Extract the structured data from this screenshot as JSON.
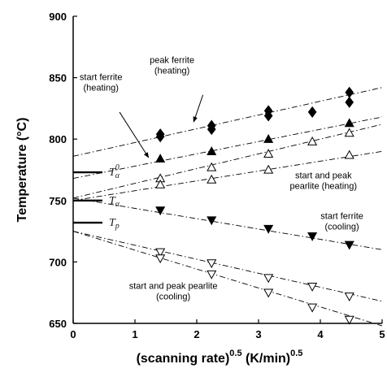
{
  "chart_data": {
    "type": "scatter",
    "title": "",
    "xlabel": "(scanning rate)^0.5 (K/min)^0.5",
    "xlabel_parts": {
      "base": "(scanning rate)",
      "exp1": "0.5",
      "unit": " (K/min)",
      "exp2": "0.5"
    },
    "ylabel": "Temperature (°C)",
    "xlim": [
      0,
      5
    ],
    "ylim": [
      650,
      900
    ],
    "xticks": [
      0,
      1,
      2,
      3,
      4,
      5
    ],
    "yticks": [
      650,
      700,
      750,
      800,
      850,
      900
    ],
    "grid": false,
    "legend": "none",
    "series": [
      {
        "marker": "filled-diamond",
        "x": [
          1.41,
          1.41,
          2.24,
          2.24,
          3.16,
          3.16,
          3.87,
          4.47,
          4.47
        ],
        "y": [
          804,
          802,
          811,
          808,
          823,
          819,
          822,
          838,
          830
        ],
        "fit": [
          [
            0,
            786
          ],
          [
            5,
            842
          ]
        ]
      },
      {
        "marker": "filled-triangle-up",
        "x": [
          1.41,
          2.24,
          3.16,
          4.47
        ],
        "y": [
          784,
          790,
          800,
          813
        ],
        "fit": [
          [
            0,
            768
          ],
          [
            5,
            818
          ]
        ]
      },
      {
        "marker": "open-triangle-up",
        "x": [
          1.41,
          2.24,
          3.16,
          3.87,
          4.47
        ],
        "y": [
          768,
          777,
          788,
          798,
          805
        ],
        "fit": [
          [
            0,
            752
          ],
          [
            5,
            812
          ]
        ]
      },
      {
        "marker": "open-triangle-up",
        "x": [
          1.41,
          2.24,
          3.16,
          4.47
        ],
        "y": [
          763,
          767,
          775,
          787
        ],
        "fit": [
          [
            0,
            750
          ],
          [
            5,
            790
          ]
        ]
      },
      {
        "marker": "filled-triangle-down",
        "x": [
          1.41,
          2.24,
          3.16,
          3.87,
          4.47
        ],
        "y": [
          742,
          734,
          727,
          721,
          714
        ],
        "fit": [
          [
            0,
            752
          ],
          [
            5,
            710
          ]
        ]
      },
      {
        "marker": "open-triangle-down",
        "x": [
          1.41,
          2.24,
          3.16,
          3.87,
          4.47
        ],
        "y": [
          708,
          699,
          687,
          680,
          672
        ],
        "fit": [
          [
            0,
            725
          ],
          [
            5,
            668
          ]
        ]
      },
      {
        "marker": "open-triangle-down",
        "x": [
          1.41,
          2.24,
          3.16,
          3.87,
          4.47
        ],
        "y": [
          703,
          690,
          675,
          663,
          653
        ],
        "fit": [
          [
            0,
            725
          ],
          [
            5,
            648
          ]
        ]
      }
    ],
    "reference_levels": [
      {
        "symbol": "T",
        "sub": "α",
        "sup": "0",
        "y": 773
      },
      {
        "symbol": "T",
        "sub": "α",
        "sup": "",
        "y": 750
      },
      {
        "symbol": "T",
        "sub": "p",
        "sup": "",
        "y": 732
      }
    ],
    "annotations": [
      {
        "lines": [
          "peak ferrite",
          "(heating)"
        ],
        "at": [
          1.6,
          862
        ],
        "arrow_from": [
          2.1,
          836
        ],
        "arrow_to": [
          1.95,
          814
        ]
      },
      {
        "lines": [
          "start ferrite",
          "(heating)"
        ],
        "at": [
          0.45,
          848
        ],
        "arrow_from": [
          0.75,
          822
        ],
        "arrow_to": [
          1.22,
          785
        ]
      },
      {
        "lines": [
          "start and peak",
          "pearlite (heating)"
        ],
        "at": [
          4.05,
          768
        ]
      },
      {
        "lines": [
          "start ferrite",
          "(cooling)"
        ],
        "at": [
          4.35,
          735
        ]
      },
      {
        "lines": [
          "start and peak pearlite",
          "(cooling)"
        ],
        "at": [
          1.62,
          678
        ]
      }
    ]
  }
}
